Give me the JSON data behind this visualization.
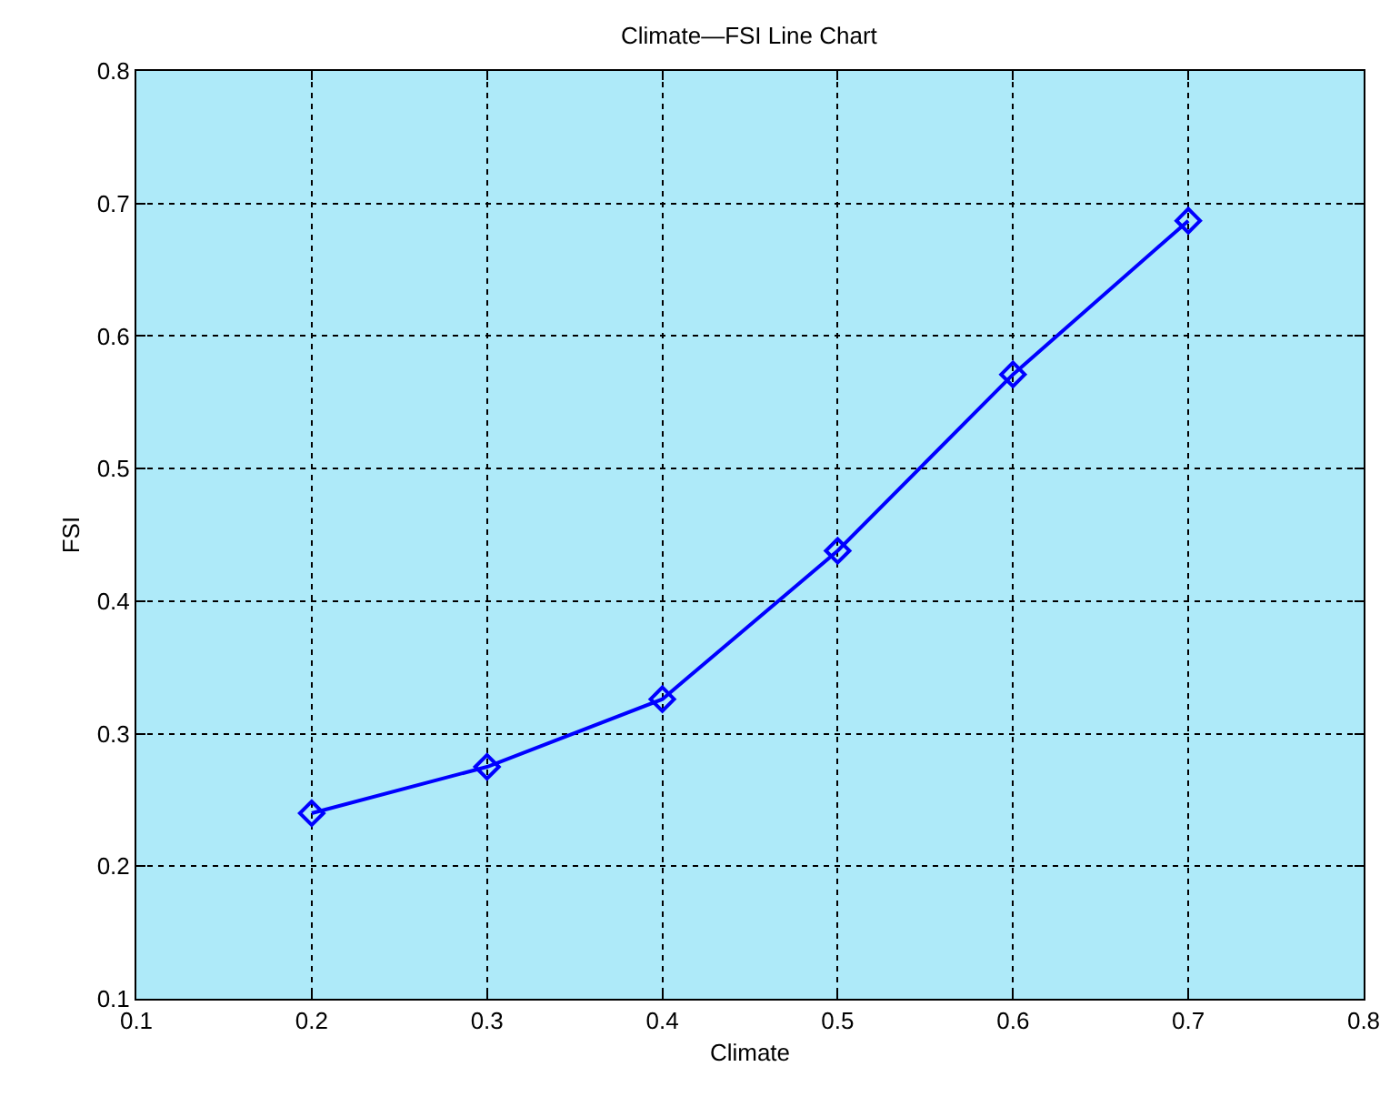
{
  "chart_data": {
    "type": "line",
    "title": "Climate—FSI Line Chart",
    "xlabel": "Climate",
    "ylabel": "FSI",
    "x": [
      0.2,
      0.3,
      0.4,
      0.5,
      0.6,
      0.7
    ],
    "values": [
      0.24,
      0.275,
      0.326,
      0.438,
      0.571,
      0.687
    ],
    "color": "#0000ff",
    "marker": "diamond",
    "line_style": "solid",
    "grid": true,
    "xlim": [
      0.1,
      0.8
    ],
    "xticks": [
      0.1,
      0.2,
      0.3,
      0.4,
      0.5,
      0.6,
      0.7,
      0.8
    ],
    "ylim": [
      0.1,
      0.8
    ],
    "yticks": [
      0.1,
      0.2,
      0.3,
      0.4,
      0.5,
      0.6,
      0.7,
      0.8
    ]
  }
}
